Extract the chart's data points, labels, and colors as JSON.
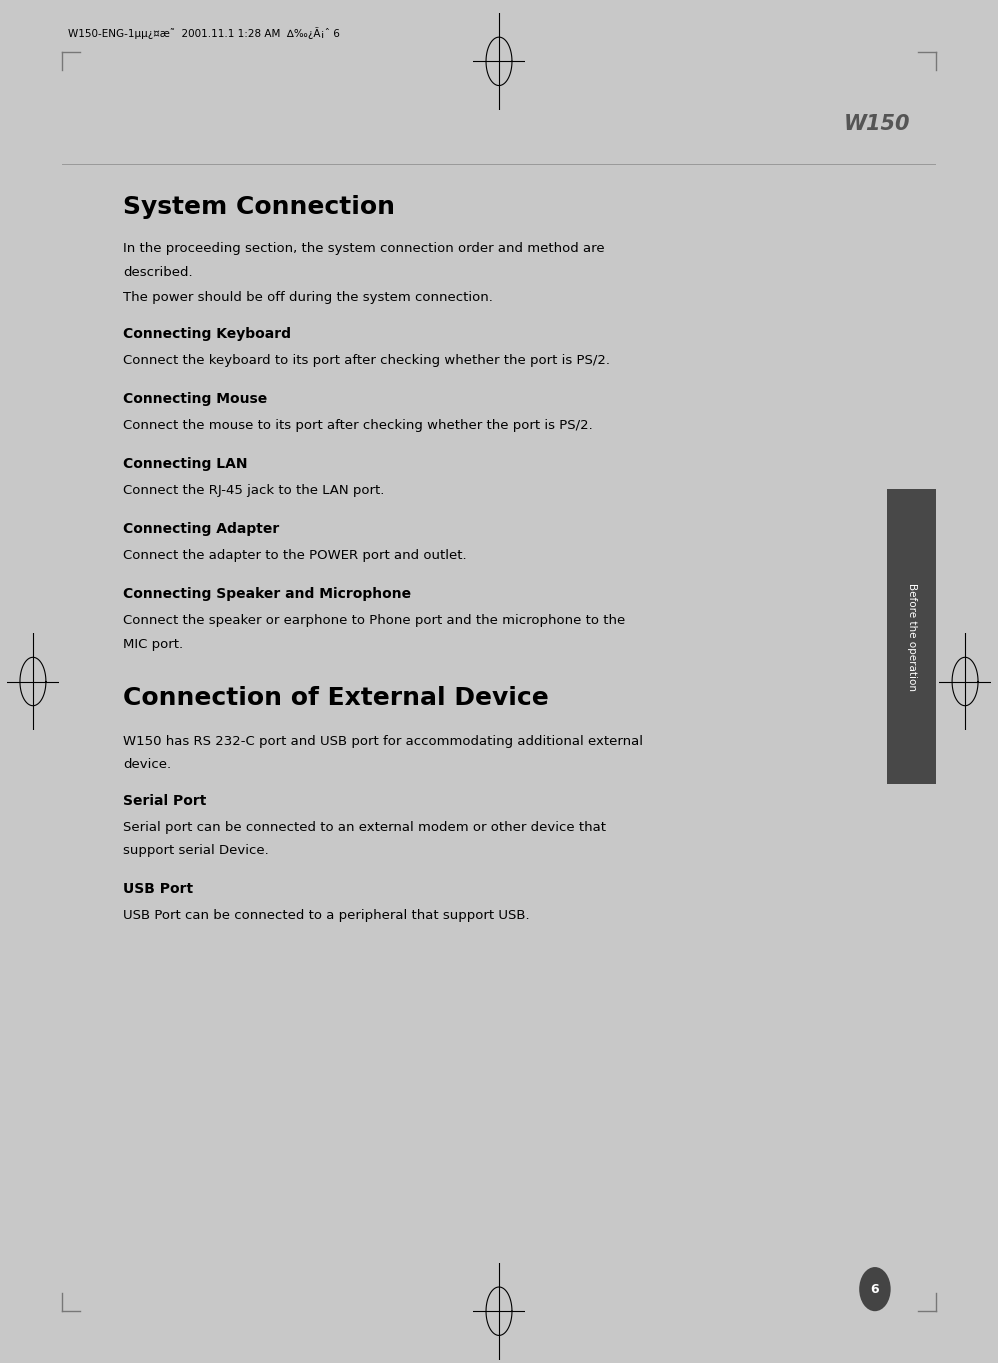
{
  "bg_color": "#c8c8c8",
  "page_bg_color": "#ffffff",
  "sidebar_color": "#484848",
  "sidebar_text": "Before the operation",
  "header_text": "W150",
  "page_number": "6",
  "header_top_text": "W150-ENG-1μμ¿¤æ˜  2001.11.1 1:28 AM  ∆‰¿Ã¡ˆ 6",
  "title1": "System Connection",
  "title2": "Connection of External Device",
  "section1_intro_line1": "In the proceeding section, the system connection order and method are",
  "section1_intro_line2": "described.",
  "section1_intro_line3": "The power should be off during the system connection.",
  "sections": [
    {
      "heading": "Connecting Keyboard",
      "body": "Connect the keyboard to its port after checking whether the port is PS/2."
    },
    {
      "heading": "Connecting Mouse",
      "body": "Connect the mouse to its port after checking whether the port is PS/2."
    },
    {
      "heading": "Connecting LAN",
      "body": "Connect the RJ-45 jack to the LAN port."
    },
    {
      "heading": "Connecting Adapter",
      "body": "Connect the adapter to the POWER port and outlet."
    },
    {
      "heading": "Connecting Speaker and Microphone",
      "body": "Connect the speaker or earphone to Phone port and the microphone to the\nMIC port."
    }
  ],
  "section2_intro": "W150 has RS 232-C port and USB port for accommodating additional external\ndevice.",
  "sections2": [
    {
      "heading": "Serial Port",
      "body": "Serial port can be connected to an external modem or other device that\nsupport serial Device."
    },
    {
      "heading": "USB Port",
      "body": "USB Port can be connected to a peripheral that support USB."
    }
  ]
}
